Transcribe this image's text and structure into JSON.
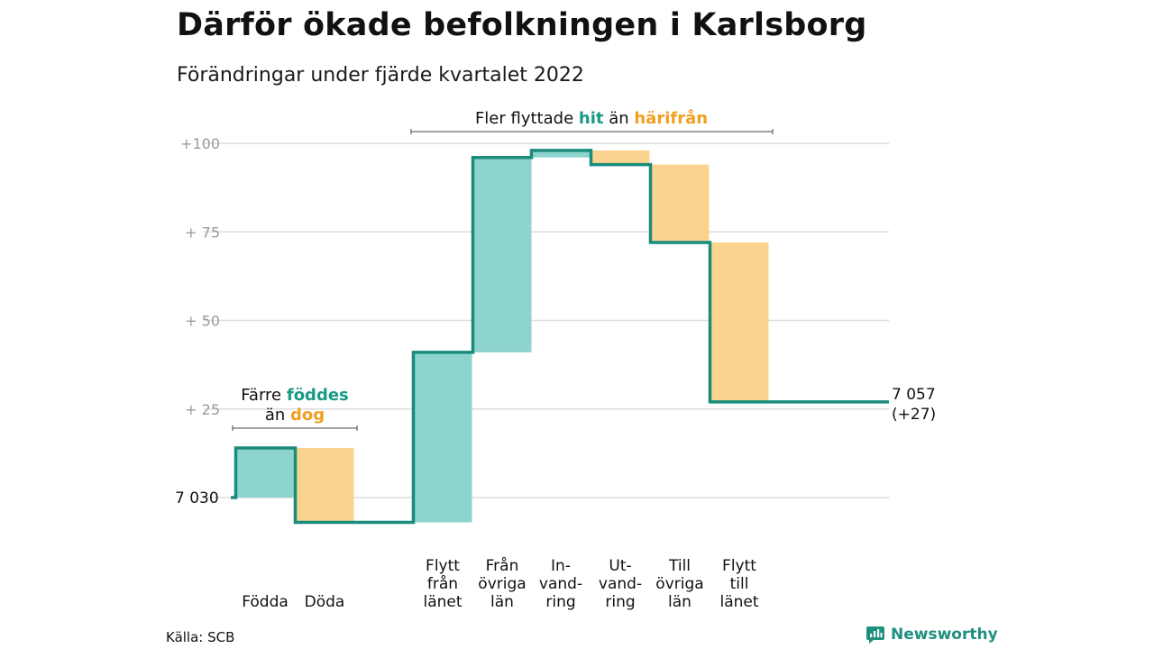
{
  "title": "Därför ökade befolkningen i Karlsborg",
  "subtitle": "Förändringar under fjärde kvartalet 2022",
  "source": "Källa: SCB",
  "brand": "Newsworthy",
  "colors": {
    "increase": "#8dd5cc",
    "decrease": "#fad48f",
    "line": "#1a8c7d",
    "accent_green": "#1a9a86",
    "accent_orange": "#f0a020",
    "grid": "#dddddd",
    "tick": "#9a9a9a"
  },
  "annotations": {
    "birth": {
      "line1_pre": "Färre ",
      "line1_hl": "föddes",
      "line2_pre": "än ",
      "line2_hl": "dog"
    },
    "migration": {
      "pre": "Fler flyttade ",
      "hl1": "hit",
      "mid": " än ",
      "hl2": "härifrån"
    }
  },
  "chart_data": {
    "type": "waterfall",
    "title": "Därför ökade befolkningen i Karlsborg",
    "subtitle": "Förändringar under fjärde kvartalet 2022",
    "ylim": [
      -6,
      102
    ],
    "yticks": [
      {
        "value": 25,
        "label": "+ 25"
      },
      {
        "value": 50,
        "label": "+ 50"
      },
      {
        "value": 75,
        "label": "+ 75"
      },
      {
        "value": 100,
        "label": "+100"
      }
    ],
    "start": {
      "value": 0,
      "label": "7 030"
    },
    "end": {
      "value": 27,
      "label_line1": "7 057",
      "label_line2": "(+27)"
    },
    "steps": [
      {
        "label": [
          "Födda"
        ],
        "change": 14
      },
      {
        "label": [
          "Döda"
        ],
        "change": -21
      },
      {
        "label": [
          "Flytt",
          "från",
          "länet"
        ],
        "change": 48
      },
      {
        "label": [
          "Från",
          "övriga",
          "län"
        ],
        "change": 55
      },
      {
        "label": [
          "In-",
          "vand-",
          "ring"
        ],
        "change": 2
      },
      {
        "label": [
          "Ut-",
          "vand-",
          "ring"
        ],
        "change": -4
      },
      {
        "label": [
          "Till",
          "övriga",
          "län"
        ],
        "change": -22
      },
      {
        "label": [
          "Flytt",
          "till",
          "länet"
        ],
        "change": -45
      }
    ]
  }
}
